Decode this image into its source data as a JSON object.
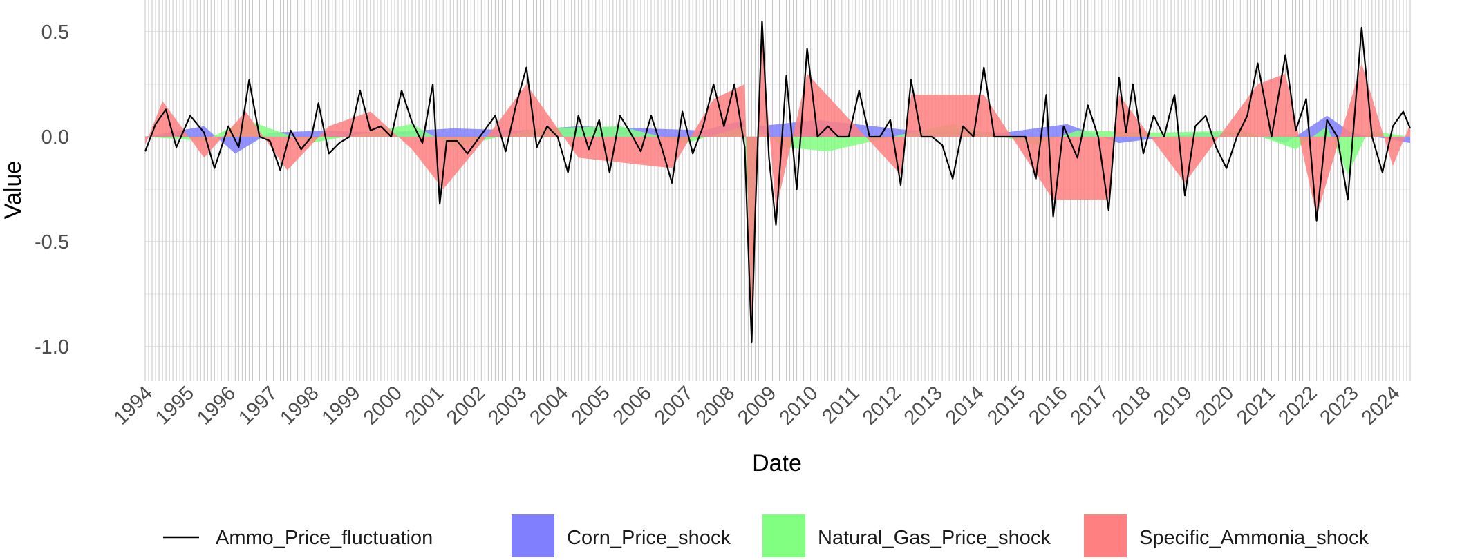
{
  "chart_data": {
    "type": "area",
    "xlabel": "Date",
    "ylabel": "Value",
    "x_tick_labels": [
      "1994",
      "1995",
      "1996",
      "1997",
      "1998",
      "1999",
      "2000",
      "2001",
      "2002",
      "2003",
      "2004",
      "2005",
      "2006",
      "2007",
      "2008",
      "2009",
      "2010",
      "2011",
      "2012",
      "2013",
      "2014",
      "2015",
      "2016",
      "2017",
      "2018",
      "2019",
      "2020",
      "2021",
      "2022",
      "2023",
      "2024"
    ],
    "x_start": "1994-01",
    "x_end": "2024-06",
    "y_tick_values": [
      0.5,
      0.0,
      -0.5,
      -1.0
    ],
    "y_tick_labels": [
      "0.5",
      "0.0",
      "-0.5",
      "-1.0"
    ],
    "ylim": [
      -1.15,
      0.64
    ],
    "grid": true,
    "monthly_vertical_gridlines": true,
    "legend_position": "bottom",
    "line_series": {
      "name": "Ammo_Price_fluctuation",
      "color": "#000000",
      "points": [
        [
          "1994-01",
          -0.07
        ],
        [
          "1994-04",
          0.06
        ],
        [
          "1994-07",
          0.13
        ],
        [
          "1994-10",
          -0.05
        ],
        [
          "1995-02",
          0.1
        ],
        [
          "1995-06",
          0.02
        ],
        [
          "1995-09",
          -0.15
        ],
        [
          "1996-01",
          0.05
        ],
        [
          "1996-04",
          -0.05
        ],
        [
          "1996-07",
          0.27
        ],
        [
          "1996-10",
          0.0
        ],
        [
          "1997-01",
          -0.02
        ],
        [
          "1997-04",
          -0.16
        ],
        [
          "1997-07",
          0.03
        ],
        [
          "1997-10",
          -0.06
        ],
        [
          "1998-01",
          0.0
        ],
        [
          "1998-03",
          0.16
        ],
        [
          "1998-06",
          -0.08
        ],
        [
          "1998-09",
          -0.03
        ],
        [
          "1998-12",
          0.0
        ],
        [
          "1999-03",
          0.22
        ],
        [
          "1999-06",
          0.03
        ],
        [
          "1999-09",
          0.05
        ],
        [
          "1999-12",
          0.0
        ],
        [
          "2000-03",
          0.22
        ],
        [
          "2000-06",
          0.07
        ],
        [
          "2000-09",
          -0.03
        ],
        [
          "2000-12",
          0.25
        ],
        [
          "2001-02",
          -0.32
        ],
        [
          "2001-04",
          -0.02
        ],
        [
          "2001-07",
          -0.02
        ],
        [
          "2001-10",
          -0.08
        ],
        [
          "2002-02",
          0.01
        ],
        [
          "2002-06",
          0.1
        ],
        [
          "2002-09",
          -0.07
        ],
        [
          "2002-12",
          0.15
        ],
        [
          "2003-03",
          0.33
        ],
        [
          "2003-06",
          -0.05
        ],
        [
          "2003-09",
          0.05
        ],
        [
          "2003-12",
          0.0
        ],
        [
          "2004-03",
          -0.17
        ],
        [
          "2004-06",
          0.1
        ],
        [
          "2004-09",
          -0.06
        ],
        [
          "2004-12",
          0.08
        ],
        [
          "2005-03",
          -0.17
        ],
        [
          "2005-06",
          0.1
        ],
        [
          "2005-09",
          0.02
        ],
        [
          "2005-12",
          -0.07
        ],
        [
          "2006-03",
          0.1
        ],
        [
          "2006-06",
          -0.05
        ],
        [
          "2006-09",
          -0.22
        ],
        [
          "2006-12",
          0.12
        ],
        [
          "2007-03",
          -0.08
        ],
        [
          "2007-06",
          0.05
        ],
        [
          "2007-09",
          0.25
        ],
        [
          "2007-12",
          0.05
        ],
        [
          "2008-03",
          0.25
        ],
        [
          "2008-06",
          -0.05
        ],
        [
          "2008-08",
          -0.98
        ],
        [
          "2008-09",
          -0.38
        ],
        [
          "2008-11",
          0.55
        ],
        [
          "2009-01",
          -0.1
        ],
        [
          "2009-03",
          -0.42
        ],
        [
          "2009-06",
          0.29
        ],
        [
          "2009-09",
          -0.25
        ],
        [
          "2009-12",
          0.42
        ],
        [
          "2010-03",
          0.0
        ],
        [
          "2010-06",
          0.05
        ],
        [
          "2010-09",
          0.0
        ],
        [
          "2010-12",
          0.0
        ],
        [
          "2011-03",
          0.22
        ],
        [
          "2011-06",
          0.0
        ],
        [
          "2011-09",
          0.0
        ],
        [
          "2011-12",
          0.08
        ],
        [
          "2012-03",
          -0.23
        ],
        [
          "2012-06",
          0.27
        ],
        [
          "2012-09",
          0.0
        ],
        [
          "2012-12",
          0.0
        ],
        [
          "2013-03",
          -0.04
        ],
        [
          "2013-06",
          -0.2
        ],
        [
          "2013-09",
          0.05
        ],
        [
          "2013-12",
          0.0
        ],
        [
          "2014-03",
          0.33
        ],
        [
          "2014-06",
          0.0
        ],
        [
          "2014-09",
          0.0
        ],
        [
          "2014-12",
          0.0
        ],
        [
          "2015-03",
          0.0
        ],
        [
          "2015-06",
          -0.2
        ],
        [
          "2015-09",
          0.2
        ],
        [
          "2015-11",
          -0.38
        ],
        [
          "2016-02",
          0.05
        ],
        [
          "2016-06",
          -0.1
        ],
        [
          "2016-09",
          0.15
        ],
        [
          "2016-12",
          0.0
        ],
        [
          "2017-03",
          -0.35
        ],
        [
          "2017-06",
          0.28
        ],
        [
          "2017-08",
          0.02
        ],
        [
          "2017-10",
          0.25
        ],
        [
          "2018-01",
          -0.08
        ],
        [
          "2018-04",
          0.1
        ],
        [
          "2018-07",
          0.0
        ],
        [
          "2018-10",
          0.2
        ],
        [
          "2019-01",
          -0.28
        ],
        [
          "2019-04",
          0.05
        ],
        [
          "2019-07",
          0.1
        ],
        [
          "2019-10",
          -0.05
        ],
        [
          "2020-01",
          -0.15
        ],
        [
          "2020-04",
          0.0
        ],
        [
          "2020-07",
          0.1
        ],
        [
          "2020-10",
          0.35
        ],
        [
          "2021-02",
          0.0
        ],
        [
          "2021-06",
          0.39
        ],
        [
          "2021-09",
          0.03
        ],
        [
          "2021-12",
          0.18
        ],
        [
          "2022-03",
          -0.4
        ],
        [
          "2022-06",
          0.08
        ],
        [
          "2022-09",
          0.0
        ],
        [
          "2022-12",
          -0.3
        ],
        [
          "2023-04",
          0.52
        ],
        [
          "2023-07",
          0.0
        ],
        [
          "2023-10",
          -0.17
        ],
        [
          "2024-01",
          0.05
        ],
        [
          "2024-04",
          0.12
        ],
        [
          "2024-06",
          0.04
        ]
      ]
    },
    "area_series": [
      {
        "name": "Corn_Price_shock",
        "color": "#8080ff",
        "points": [
          [
            "1994-01",
            0.0
          ],
          [
            "1995-06",
            0.05
          ],
          [
            "1996-03",
            -0.08
          ],
          [
            "1997-01",
            0.02
          ],
          [
            "1998-06",
            0.03
          ],
          [
            "1999-09",
            0.02
          ],
          [
            "2001-06",
            0.04
          ],
          [
            "2003-01",
            0.03
          ],
          [
            "2004-06",
            0.05
          ],
          [
            "2006-01",
            0.04
          ],
          [
            "2007-06",
            0.03
          ],
          [
            "2008-06",
            0.08
          ],
          [
            "2008-08",
            -0.75
          ],
          [
            "2008-10",
            0.05
          ],
          [
            "2010-03",
            0.08
          ],
          [
            "2012-06",
            0.03
          ],
          [
            "2014-09",
            0.02
          ],
          [
            "2016-03",
            0.06
          ],
          [
            "2017-06",
            -0.03
          ],
          [
            "2019-06",
            0.02
          ],
          [
            "2020-06",
            0.02
          ],
          [
            "2021-06",
            -0.03
          ],
          [
            "2022-06",
            0.1
          ],
          [
            "2023-01",
            0.02
          ],
          [
            "2024-06",
            -0.03
          ]
        ]
      },
      {
        "name": "Natural_Gas_Price_shock",
        "color": "#80ff80",
        "points": [
          [
            "1994-01",
            0.0
          ],
          [
            "1995-06",
            -0.02
          ],
          [
            "1996-06",
            0.08
          ],
          [
            "1998-01",
            -0.03
          ],
          [
            "2000-06",
            0.06
          ],
          [
            "2001-06",
            -0.05
          ],
          [
            "2003-06",
            0.04
          ],
          [
            "2005-06",
            0.05
          ],
          [
            "2007-01",
            -0.03
          ],
          [
            "2008-06",
            0.05
          ],
          [
            "2008-08",
            -0.8
          ],
          [
            "2008-10",
            0.03
          ],
          [
            "2009-06",
            -0.05
          ],
          [
            "2010-06",
            -0.07
          ],
          [
            "2012-06",
            0.02
          ],
          [
            "2013-06",
            0.06
          ],
          [
            "2015-06",
            -0.04
          ],
          [
            "2016-06",
            0.03
          ],
          [
            "2018-06",
            0.02
          ],
          [
            "2020-06",
            0.03
          ],
          [
            "2021-09",
            -0.06
          ],
          [
            "2022-06",
            0.05
          ],
          [
            "2022-12",
            -0.18
          ],
          [
            "2023-06",
            0.03
          ],
          [
            "2024-06",
            0.0
          ]
        ]
      },
      {
        "name": "Specific_Ammonia_shock",
        "color": "#ff8080",
        "points": [
          [
            "1994-01",
            -0.04
          ],
          [
            "1994-06",
            0.17
          ],
          [
            "1995-06",
            -0.1
          ],
          [
            "1996-06",
            0.12
          ],
          [
            "1997-06",
            -0.16
          ],
          [
            "1998-06",
            0.05
          ],
          [
            "1999-06",
            0.12
          ],
          [
            "2000-06",
            -0.06
          ],
          [
            "2001-03",
            -0.25
          ],
          [
            "2002-06",
            0.05
          ],
          [
            "2003-03",
            0.25
          ],
          [
            "2004-06",
            -0.1
          ],
          [
            "2006-09",
            -0.15
          ],
          [
            "2007-09",
            0.18
          ],
          [
            "2008-06",
            0.25
          ],
          [
            "2008-08",
            -0.95
          ],
          [
            "2008-11",
            0.45
          ],
          [
            "2009-03",
            -0.35
          ],
          [
            "2009-12",
            0.3
          ],
          [
            "2012-03",
            -0.18
          ],
          [
            "2012-06",
            0.2
          ],
          [
            "2014-03",
            0.2
          ],
          [
            "2015-11",
            -0.3
          ],
          [
            "2017-03",
            -0.3
          ],
          [
            "2017-06",
            0.2
          ],
          [
            "2019-01",
            -0.22
          ],
          [
            "2020-10",
            0.25
          ],
          [
            "2021-06",
            0.3
          ],
          [
            "2022-03",
            -0.38
          ],
          [
            "2023-04",
            0.35
          ],
          [
            "2024-01",
            -0.14
          ],
          [
            "2024-06",
            0.06
          ]
        ]
      }
    ],
    "legend_entries": [
      {
        "label": "Ammo_Price_fluctuation",
        "kind": "line",
        "color": "#000000"
      },
      {
        "label": "Corn_Price_shock",
        "kind": "fill",
        "color": "#8080ff"
      },
      {
        "label": "Natural_Gas_Price_shock",
        "kind": "fill",
        "color": "#80ff80"
      },
      {
        "label": "Specific_Ammonia_shock",
        "kind": "fill",
        "color": "#ff8080"
      }
    ]
  }
}
